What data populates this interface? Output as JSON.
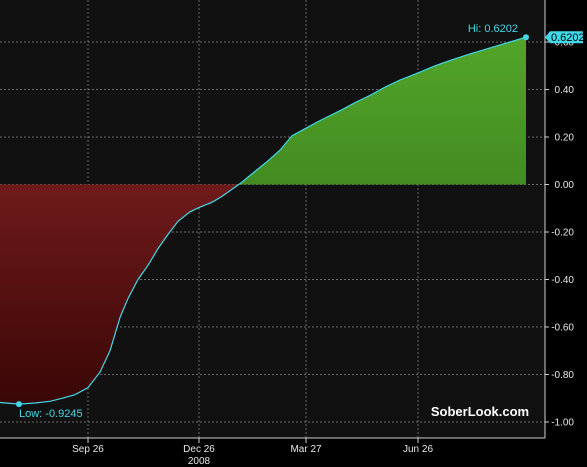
{
  "chart_data": {
    "type": "area",
    "x_ticks": [
      {
        "label": "Sep 26",
        "pos": 88
      },
      {
        "label": "Dec 26",
        "pos": 199
      },
      {
        "label": "Mar 27",
        "pos": 306
      },
      {
        "label": "Jun 26",
        "pos": 418
      }
    ],
    "x_year_label": "2008",
    "x_year_pos": 199,
    "xlim": [
      0,
      545
    ],
    "ylim": [
      -1.0,
      0.7
    ],
    "y_ticks": [
      0.6,
      0.4,
      0.2,
      0.0,
      -0.2,
      -0.4,
      -0.6,
      -0.8,
      -1.0
    ],
    "y_tick_labels": [
      "0.60",
      "0.40",
      "0.20",
      "0.00",
      "-0.20",
      "-0.40",
      "-0.60",
      "-0.80",
      "-1.00"
    ],
    "series": [
      {
        "points": [
          [
            0,
            -0.918
          ],
          [
            19,
            -0.9245
          ],
          [
            35,
            -0.92
          ],
          [
            50,
            -0.913
          ],
          [
            62,
            -0.9
          ],
          [
            75,
            -0.885
          ],
          [
            88,
            -0.855
          ],
          [
            100,
            -0.79
          ],
          [
            110,
            -0.7
          ],
          [
            120,
            -0.56
          ],
          [
            128,
            -0.48
          ],
          [
            138,
            -0.4
          ],
          [
            148,
            -0.34
          ],
          [
            158,
            -0.27
          ],
          [
            168,
            -0.21
          ],
          [
            178,
            -0.155
          ],
          [
            190,
            -0.115
          ],
          [
            200,
            -0.095
          ],
          [
            212,
            -0.075
          ],
          [
            222,
            -0.05
          ],
          [
            232,
            -0.02
          ],
          [
            242,
            0.01
          ],
          [
            255,
            0.055
          ],
          [
            268,
            0.1
          ],
          [
            280,
            0.145
          ],
          [
            292,
            0.205
          ],
          [
            305,
            0.235
          ],
          [
            318,
            0.265
          ],
          [
            330,
            0.29
          ],
          [
            342,
            0.315
          ],
          [
            355,
            0.345
          ],
          [
            370,
            0.375
          ],
          [
            385,
            0.41
          ],
          [
            400,
            0.44
          ],
          [
            418,
            0.47
          ],
          [
            435,
            0.5
          ],
          [
            452,
            0.525
          ],
          [
            470,
            0.55
          ],
          [
            490,
            0.575
          ],
          [
            510,
            0.6
          ],
          [
            526,
            0.6202
          ]
        ]
      }
    ],
    "colors": {
      "line": "#40d8e8",
      "positive_fill_top": "#52a52a",
      "positive_fill_bottom": "#2e6614",
      "negative_fill_top": "#932828",
      "negative_fill_bottom": "#3a0606",
      "background": "#111111",
      "grid": "#8a8a8a",
      "current_value_box": "#40d8e8"
    },
    "grid": true,
    "annotations": {
      "high_label": "Hi: 0.6202",
      "low_label": "Low: -0.9245",
      "current_value_label": "0.6202"
    },
    "watermark": "SoberLook.com"
  }
}
